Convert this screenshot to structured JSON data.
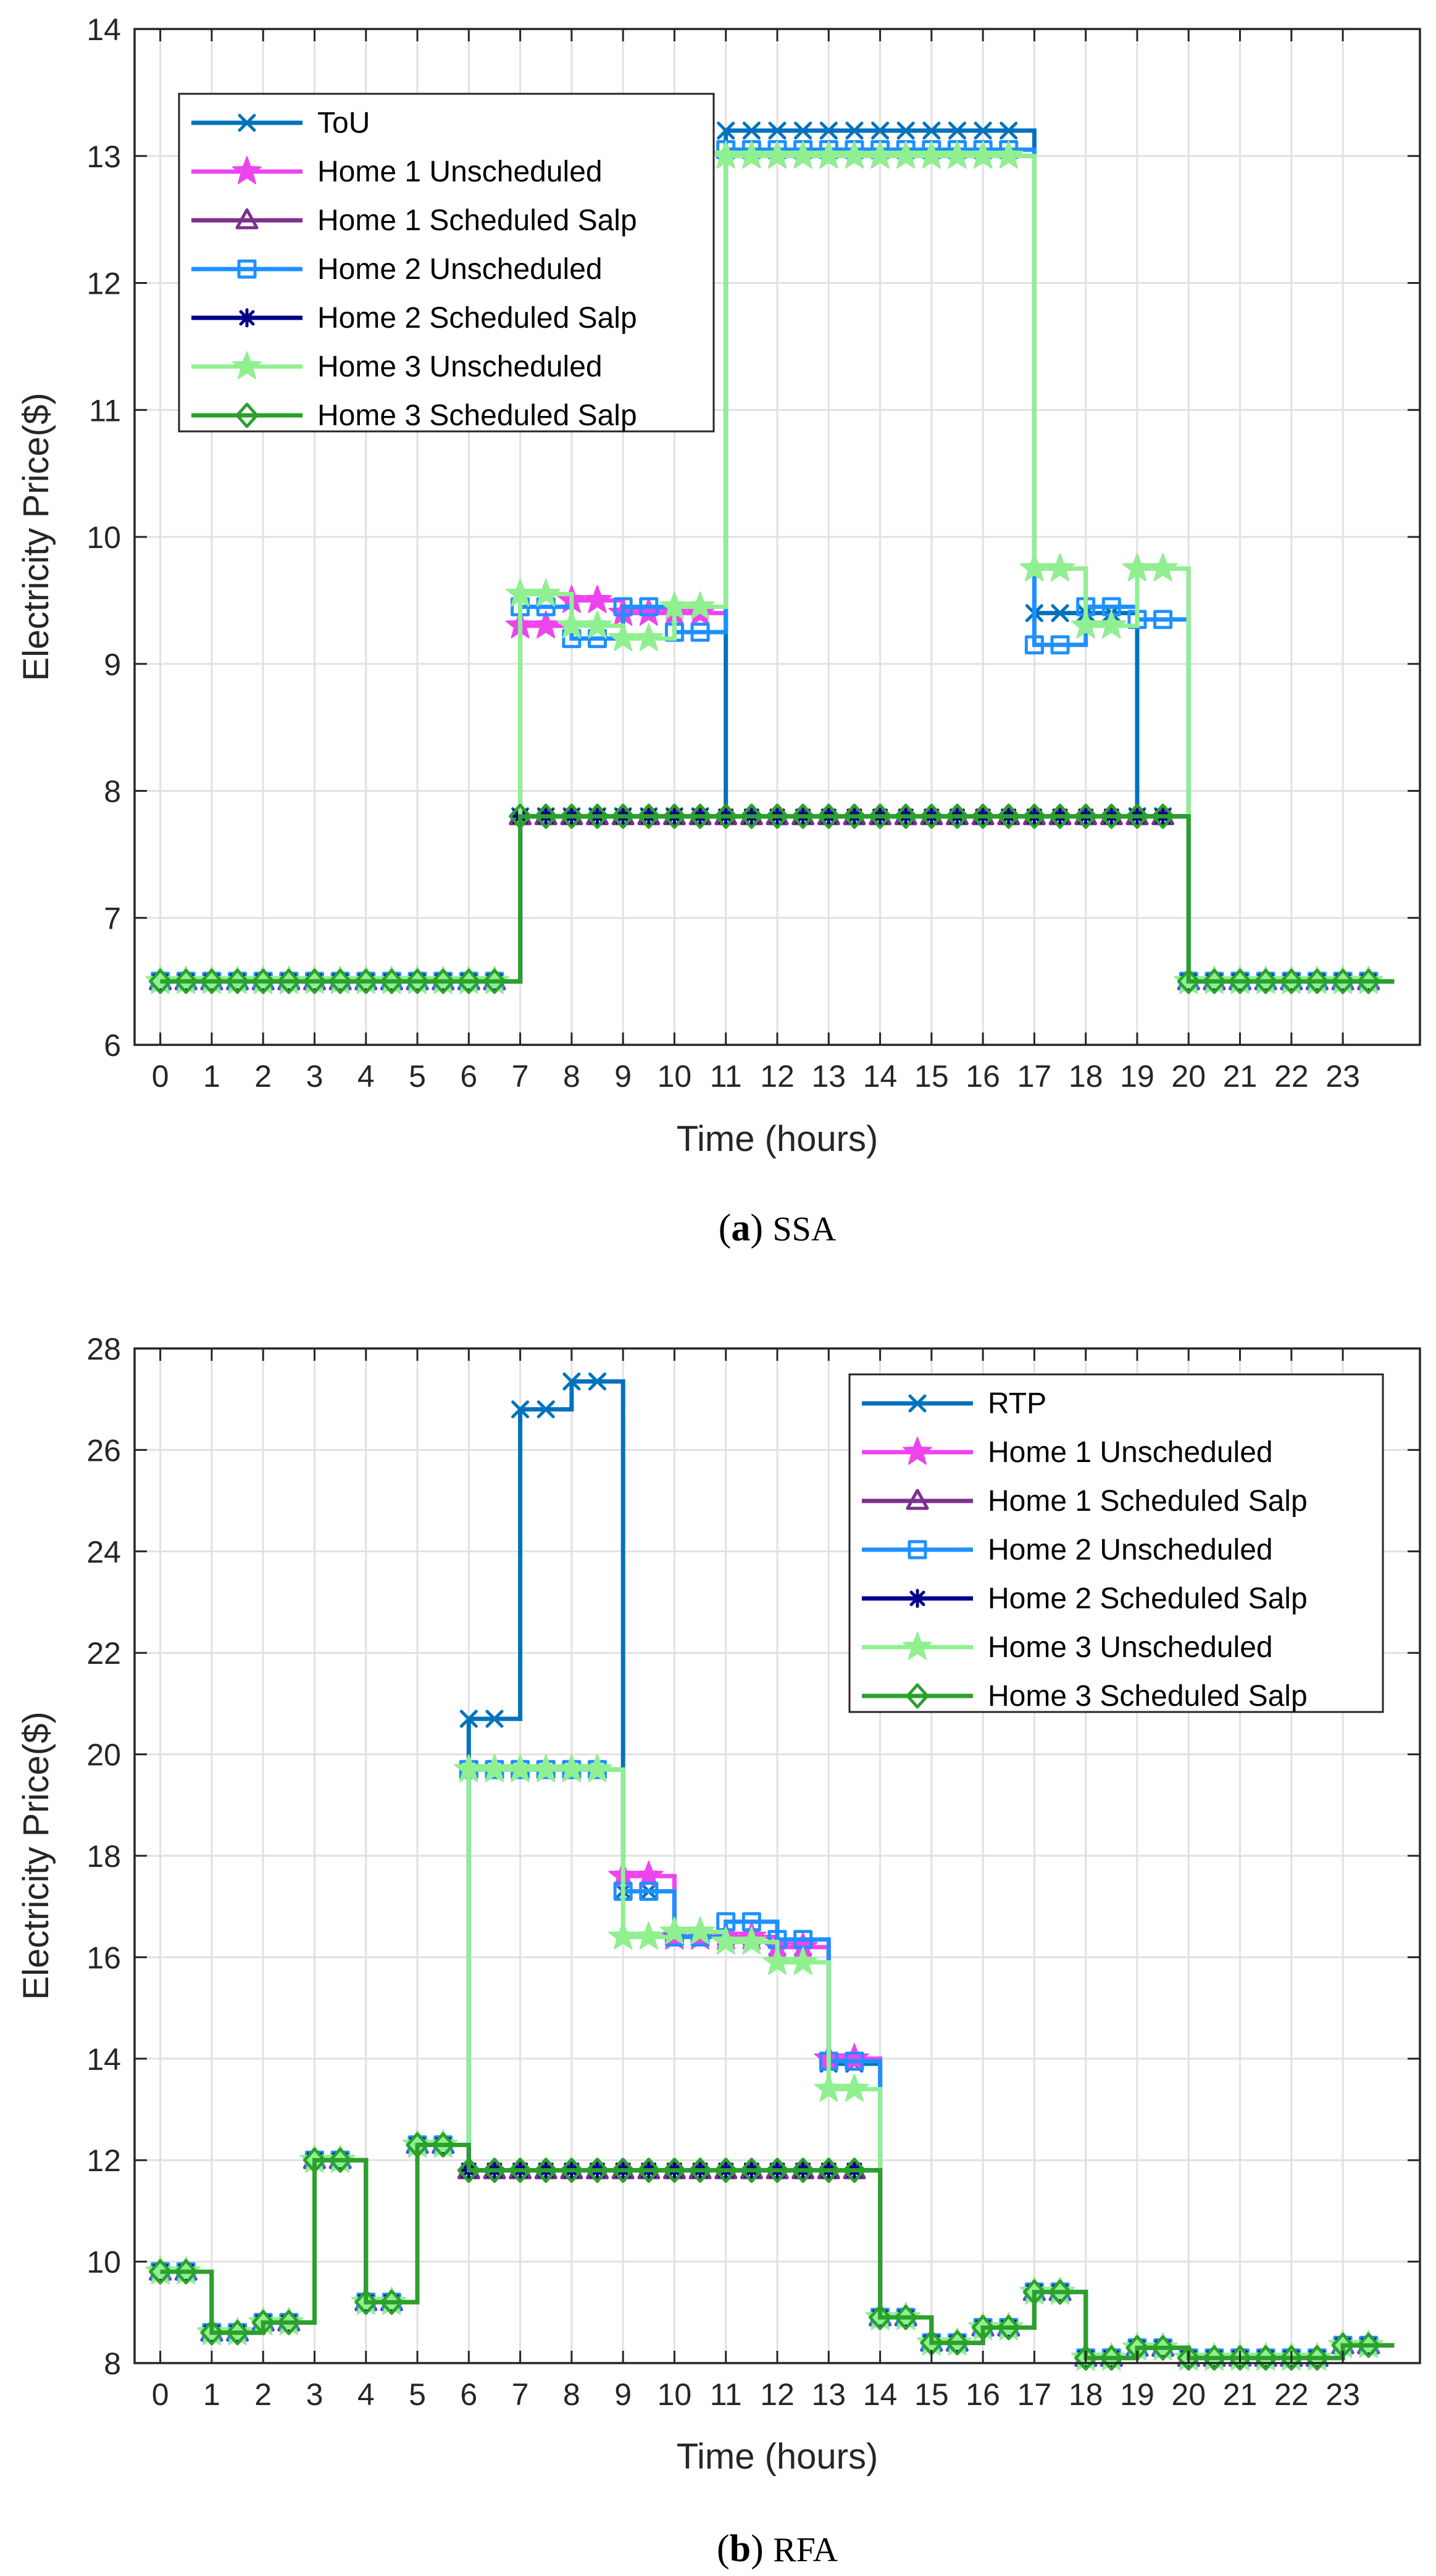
{
  "chart_data": [
    {
      "panel": "a",
      "type": "line",
      "caption_letter": "a",
      "caption_name": "SSA",
      "xlabel": "Time (hours)",
      "ylabel": "Electricity Price($)",
      "xlim": [
        -0.5,
        24.5
      ],
      "ylim": [
        6,
        14
      ],
      "xticks": [
        0,
        1,
        2,
        3,
        4,
        5,
        6,
        7,
        8,
        9,
        10,
        11,
        12,
        13,
        14,
        15,
        16,
        17,
        18,
        19,
        20,
        21,
        22,
        23
      ],
      "yticks": [
        6,
        7,
        8,
        9,
        10,
        11,
        12,
        13,
        14
      ],
      "grid": true,
      "legend_position": "top-left",
      "series": [
        {
          "name": "ToU",
          "color": "#0072BD",
          "marker": "x",
          "values": [
            6.5,
            6.5,
            6.5,
            6.5,
            6.5,
            6.5,
            6.5,
            7.8,
            7.8,
            7.8,
            7.8,
            13.2,
            13.2,
            13.2,
            13.2,
            13.2,
            13.2,
            9.4,
            9.4,
            7.8,
            6.5,
            6.5,
            6.5,
            6.5
          ]
        },
        {
          "name": "Home 1 Unscheduled",
          "color": "#EE44EE",
          "marker": "star",
          "values": [
            6.5,
            6.5,
            6.5,
            6.5,
            6.5,
            6.5,
            6.5,
            9.3,
            9.5,
            9.4,
            9.4,
            13.0,
            13.0,
            13.0,
            13.0,
            13.0,
            13.0,
            9.75,
            9.3,
            9.75,
            6.5,
            6.5,
            6.5,
            6.5
          ]
        },
        {
          "name": "Home 1 Scheduled Salp",
          "color": "#7E2F8E",
          "marker": "triangle",
          "values": [
            6.5,
            6.5,
            6.5,
            6.5,
            6.5,
            6.5,
            6.5,
            7.8,
            7.8,
            7.8,
            7.8,
            7.8,
            7.8,
            7.8,
            7.8,
            7.8,
            7.8,
            7.8,
            7.8,
            7.8,
            6.5,
            6.5,
            6.5,
            6.5
          ]
        },
        {
          "name": "Home 2 Unscheduled",
          "color": "#1E90FF",
          "marker": "square",
          "values": [
            6.5,
            6.5,
            6.5,
            6.5,
            6.5,
            6.5,
            6.5,
            9.45,
            9.2,
            9.45,
            9.25,
            13.05,
            13.05,
            13.05,
            13.05,
            13.05,
            13.05,
            9.15,
            9.45,
            9.35,
            6.5,
            6.5,
            6.5,
            6.5
          ]
        },
        {
          "name": "Home 2 Scheduled Salp",
          "color": "#00008B",
          "marker": "asterisk",
          "values": [
            6.5,
            6.5,
            6.5,
            6.5,
            6.5,
            6.5,
            6.5,
            7.8,
            7.8,
            7.8,
            7.8,
            7.8,
            7.8,
            7.8,
            7.8,
            7.8,
            7.8,
            7.8,
            7.8,
            7.8,
            6.5,
            6.5,
            6.5,
            6.5
          ]
        },
        {
          "name": "Home 3 Unscheduled",
          "color": "#90F090",
          "marker": "star",
          "values": [
            6.5,
            6.5,
            6.5,
            6.5,
            6.5,
            6.5,
            6.5,
            9.55,
            9.3,
            9.2,
            9.45,
            13.0,
            13.0,
            13.0,
            13.0,
            13.0,
            13.0,
            9.75,
            9.3,
            9.75,
            6.5,
            6.5,
            6.5,
            6.5
          ]
        },
        {
          "name": "Home 3 Scheduled Salp",
          "color": "#2CA02C",
          "marker": "diamond",
          "values": [
            6.5,
            6.5,
            6.5,
            6.5,
            6.5,
            6.5,
            6.5,
            7.8,
            7.8,
            7.8,
            7.8,
            7.8,
            7.8,
            7.8,
            7.8,
            7.8,
            7.8,
            7.8,
            7.8,
            7.8,
            6.5,
            6.5,
            6.5,
            6.5
          ]
        }
      ]
    },
    {
      "panel": "b",
      "type": "line",
      "caption_letter": "b",
      "caption_name": "RFA",
      "xlabel": "Time (hours)",
      "ylabel": "Electricity Price($)",
      "xlim": [
        -0.5,
        24.5
      ],
      "ylim": [
        8,
        28
      ],
      "xticks": [
        0,
        1,
        2,
        3,
        4,
        5,
        6,
        7,
        8,
        9,
        10,
        11,
        12,
        13,
        14,
        15,
        16,
        17,
        18,
        19,
        20,
        21,
        22,
        23
      ],
      "yticks": [
        8,
        10,
        12,
        14,
        16,
        18,
        20,
        22,
        24,
        26,
        28
      ],
      "grid": true,
      "legend_position": "top-right",
      "series": [
        {
          "name": "RTP",
          "color": "#0072BD",
          "marker": "x",
          "values": [
            9.8,
            8.6,
            8.8,
            12.0,
            9.2,
            12.3,
            20.7,
            26.8,
            27.35,
            17.3,
            16.4,
            16.4,
            16.2,
            13.9,
            8.9,
            8.4,
            8.7,
            9.4,
            8.1,
            8.3,
            8.1,
            8.1,
            8.1,
            8.35
          ]
        },
        {
          "name": "Home 1 Unscheduled",
          "color": "#EE44EE",
          "marker": "star",
          "values": [
            9.8,
            8.6,
            8.8,
            12.0,
            9.2,
            12.3,
            19.7,
            19.7,
            19.7,
            17.6,
            16.4,
            16.4,
            16.2,
            14.0,
            8.9,
            8.4,
            8.7,
            9.4,
            8.1,
            8.3,
            8.1,
            8.1,
            8.1,
            8.35
          ]
        },
        {
          "name": "Home 1 Scheduled Salp",
          "color": "#7E2F8E",
          "marker": "triangle",
          "values": [
            9.8,
            8.6,
            8.8,
            12.0,
            9.2,
            12.3,
            11.8,
            11.8,
            11.8,
            11.8,
            11.8,
            11.8,
            11.8,
            11.8,
            8.9,
            8.4,
            8.7,
            9.4,
            8.1,
            8.3,
            8.1,
            8.1,
            8.1,
            8.35
          ]
        },
        {
          "name": "Home 2 Unscheduled",
          "color": "#1E90FF",
          "marker": "square",
          "values": [
            9.8,
            8.6,
            8.8,
            12.0,
            9.2,
            12.3,
            19.7,
            19.7,
            19.7,
            17.3,
            16.4,
            16.7,
            16.35,
            13.95,
            8.9,
            8.4,
            8.7,
            9.4,
            8.1,
            8.3,
            8.1,
            8.1,
            8.1,
            8.35
          ]
        },
        {
          "name": "Home 2 Scheduled Salp",
          "color": "#00008B",
          "marker": "asterisk",
          "values": [
            9.8,
            8.6,
            8.8,
            12.0,
            9.2,
            12.3,
            11.8,
            11.8,
            11.8,
            11.8,
            11.8,
            11.8,
            11.8,
            11.8,
            8.9,
            8.4,
            8.7,
            9.4,
            8.1,
            8.3,
            8.1,
            8.1,
            8.1,
            8.35
          ]
        },
        {
          "name": "Home 3 Unscheduled",
          "color": "#90F090",
          "marker": "star",
          "values": [
            9.8,
            8.6,
            8.8,
            12.0,
            9.2,
            12.3,
            19.7,
            19.7,
            19.7,
            16.4,
            16.5,
            16.3,
            15.9,
            13.4,
            8.9,
            8.4,
            8.7,
            9.4,
            8.1,
            8.3,
            8.1,
            8.1,
            8.1,
            8.35
          ]
        },
        {
          "name": "Home 3 Scheduled Salp",
          "color": "#2CA02C",
          "marker": "diamond",
          "values": [
            9.8,
            8.6,
            8.8,
            12.0,
            9.2,
            12.3,
            11.8,
            11.8,
            11.8,
            11.8,
            11.8,
            11.8,
            11.8,
            11.8,
            8.9,
            8.4,
            8.7,
            9.4,
            8.1,
            8.3,
            8.1,
            8.1,
            8.1,
            8.35
          ]
        }
      ]
    }
  ]
}
